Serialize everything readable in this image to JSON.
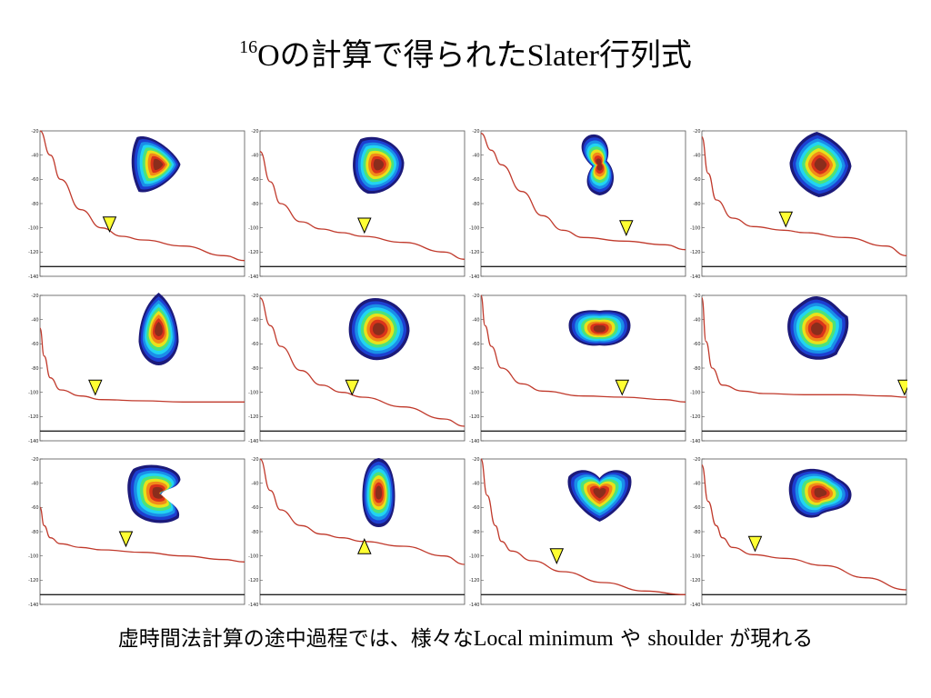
{
  "title": {
    "sup": "16",
    "element": "O",
    "jp1": "の計算で得られた",
    "slater": "Slater",
    "jp2": "行列式"
  },
  "caption": {
    "jp1": "虚時間法計算の途中過程では、様々な",
    "local": "Local minimum",
    "ya": " や ",
    "shoulder": "shoulder",
    "jp2": " が現れる"
  },
  "colors": {
    "curve": "#c0392b",
    "baseline": "#222222",
    "marker": "#ffff33",
    "frame": "#555555"
  },
  "chart_data": {
    "type": "line",
    "ylim": [
      -140,
      -20
    ],
    "y_ticks": [
      "-20",
      "-40",
      "-60",
      "-80",
      "-100",
      "-120",
      "-140"
    ],
    "baseline_y": -132,
    "marker_icon": "yellow-triangle-icon",
    "panels": [
      {
        "row": 1,
        "col": 1,
        "x": [
          0,
          0.05,
          0.1,
          0.2,
          0.3,
          0.4,
          0.5,
          0.7,
          0.9,
          1.0
        ],
        "y": [
          -20,
          -40,
          -60,
          -85,
          -100,
          -107,
          -110,
          -115,
          -123,
          -127
        ],
        "marker_x": 0.34,
        "marker_y": -97,
        "marker_dir": "down",
        "density": "tri-ring"
      },
      {
        "row": 1,
        "col": 2,
        "x": [
          0,
          0.05,
          0.1,
          0.2,
          0.3,
          0.4,
          0.5,
          0.7,
          0.9,
          1.0
        ],
        "y": [
          -37,
          -62,
          -80,
          -95,
          -101,
          -104,
          -107,
          -112,
          -120,
          -126
        ],
        "marker_x": 0.51,
        "marker_y": -98,
        "marker_dir": "down",
        "density": "tilted-tetra"
      },
      {
        "row": 1,
        "col": 3,
        "x": [
          0,
          0.05,
          0.1,
          0.2,
          0.3,
          0.4,
          0.5,
          0.7,
          0.9,
          1.0
        ],
        "y": [
          -22,
          -36,
          -48,
          -70,
          -90,
          -102,
          -108,
          -111,
          -114,
          -118
        ],
        "marker_x": 0.71,
        "marker_y": -100,
        "marker_dir": "down",
        "density": "kink"
      },
      {
        "row": 1,
        "col": 4,
        "x": [
          0,
          0.03,
          0.07,
          0.15,
          0.25,
          0.4,
          0.5,
          0.7,
          0.9,
          1.0
        ],
        "y": [
          -25,
          -55,
          -77,
          -92,
          -99,
          -102,
          -104,
          -108,
          -115,
          -123
        ],
        "marker_x": 0.41,
        "marker_y": -93,
        "marker_dir": "down",
        "density": "square"
      },
      {
        "row": 2,
        "col": 1,
        "x": [
          0,
          0.02,
          0.05,
          0.1,
          0.2,
          0.3,
          0.5,
          0.7,
          0.9,
          1.0
        ],
        "y": [
          -47,
          -70,
          -88,
          -98,
          -103,
          -106,
          -107,
          -108,
          -108,
          -108
        ],
        "marker_x": 0.27,
        "marker_y": -96,
        "marker_dir": "down",
        "density": "drop"
      },
      {
        "row": 2,
        "col": 2,
        "x": [
          0,
          0.05,
          0.1,
          0.2,
          0.3,
          0.4,
          0.5,
          0.7,
          0.9,
          1.0
        ],
        "y": [
          -22,
          -45,
          -62,
          -82,
          -94,
          -100,
          -104,
          -112,
          -122,
          -128
        ],
        "marker_x": 0.45,
        "marker_y": -96,
        "marker_dir": "down",
        "density": "tetra"
      },
      {
        "row": 2,
        "col": 3,
        "x": [
          0,
          0.02,
          0.05,
          0.1,
          0.2,
          0.3,
          0.5,
          0.7,
          0.9,
          1.0
        ],
        "y": [
          -20,
          -45,
          -62,
          -80,
          -93,
          -99,
          -103,
          -104,
          -106,
          -108
        ],
        "marker_x": 0.69,
        "marker_y": -96,
        "marker_dir": "down",
        "density": "rod"
      },
      {
        "row": 2,
        "col": 4,
        "x": [
          0,
          0.02,
          0.05,
          0.1,
          0.2,
          0.3,
          0.5,
          0.7,
          0.9,
          1.0
        ],
        "y": [
          -22,
          -58,
          -80,
          -94,
          -99,
          -101,
          -102,
          -102,
          -103,
          -104
        ],
        "marker_x": 0.99,
        "marker_y": -96,
        "marker_dir": "down",
        "density": "cross"
      },
      {
        "row": 3,
        "col": 1,
        "x": [
          0,
          0.02,
          0.05,
          0.1,
          0.2,
          0.3,
          0.5,
          0.7,
          0.9,
          1.0
        ],
        "y": [
          -60,
          -75,
          -85,
          -90,
          -93,
          -95,
          -97,
          -100,
          -103,
          -105
        ],
        "marker_x": 0.42,
        "marker_y": -86,
        "marker_dir": "down",
        "density": "c-shape"
      },
      {
        "row": 3,
        "col": 2,
        "x": [
          0,
          0.05,
          0.1,
          0.2,
          0.3,
          0.4,
          0.5,
          0.7,
          0.9,
          1.0
        ],
        "y": [
          -20,
          -46,
          -62,
          -75,
          -82,
          -85,
          -88,
          -92,
          -100,
          -107
        ],
        "marker_x": 0.51,
        "marker_y": -93,
        "marker_dir": "up",
        "density": "vertical"
      },
      {
        "row": 3,
        "col": 3,
        "x": [
          0,
          0.03,
          0.07,
          0.1,
          0.15,
          0.25,
          0.4,
          0.6,
          0.8,
          1.0
        ],
        "y": [
          -20,
          -50,
          -75,
          -88,
          -96,
          -104,
          -113,
          -122,
          -129,
          -132
        ],
        "marker_x": 0.37,
        "marker_y": -100,
        "marker_dir": "down",
        "density": "heart"
      },
      {
        "row": 3,
        "col": 4,
        "x": [
          0,
          0.03,
          0.07,
          0.1,
          0.15,
          0.25,
          0.4,
          0.6,
          0.8,
          1.0
        ],
        "y": [
          -25,
          -55,
          -75,
          -85,
          -93,
          -99,
          -102,
          -108,
          -118,
          -128
        ],
        "marker_x": 0.26,
        "marker_y": -90,
        "marker_dir": "down",
        "density": "triangle"
      }
    ]
  }
}
